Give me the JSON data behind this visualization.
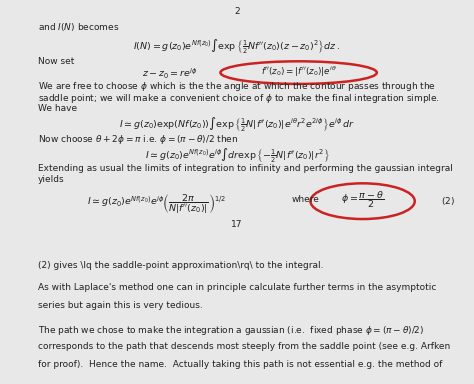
{
  "page_number_top": "2",
  "top_panel": {
    "background": "#f5f5f5",
    "text_color": "#222222",
    "line1": "and $I(N)$ becomes",
    "eq1": "$I(N) = g(z_0)e^{Nf(z_0)} \\int \\exp\\left\\{\\frac{1}{2}Nf''(z_0)(z-z_0)^2\\right\\} dz\\,.$",
    "line2": "Now set",
    "eq2": "$z - z_0 = re^{i\\phi}$",
    "circle1_label": "$f''(z_0) = |f''(z_0)|e^{i\\theta}$",
    "line3": "We are free to choose $\\phi$ which is the the angle at which the contour passes through the",
    "line4": "saddle point; we will make a convenient choice of $\\phi$ to make the final integration simple.",
    "line5": "We have",
    "eq3": "$I \\simeq g(z_0)\\exp(Nf(z_0)) \\int \\exp\\left\\{\\frac{1}{2}N|f''(z_0)|e^{i\\theta}r^2e^{2i\\phi}\\right\\} e^{i\\phi}\\, dr$",
    "line6": "Now choose $\\theta + 2\\phi = \\pi$ i.e. $\\phi = (\\pi-\\theta)/2$ then",
    "eq4": "$I \\simeq g(z_0)e^{Nf(z_0)} e^{i\\phi} \\int dr \\exp\\left\\{-\\frac{1}{2}N|f''(z_0)|r^2\\right\\}$",
    "line7": "Extending as usual the limits of integration to infinity and performing the gaussian integral",
    "line8": "yields",
    "eq5": "$I \\simeq g(z_0)e^{Nf(z_0)} e^{i\\phi} \\left(\\frac{2\\pi}{N|f''(z_0)|}\\right)^{1/2}$",
    "where_label": "where",
    "circle2_label": "$\\phi = \\dfrac{\\pi - \\theta}{2}$",
    "eq_number": "(2)",
    "page_number_bottom": "17"
  },
  "bottom_panel": {
    "background": "#ffffff",
    "text_color": "#222222",
    "line1": "(2) gives ‘the saddle-point approximation’ to the integral.",
    "line2": "As with Laplace’s method one can in principle calculate further terms in the asymptotic",
    "line3": "series but again this is very tedious.",
    "line4": "The path we chose to make the integration a gaussian (i.e.  fixed phase $\\phi = (\\pi - \\theta)/2$)",
    "line5": "corresponds to the path that descends most steeply from the saddle point (see e.g. Arfken",
    "line6": "for proof).  Hence the name.  Actually taking this path is not essential e.g. the method of"
  },
  "divider_color": "#cccccc",
  "circle_color": "#cc2222",
  "circle_linewidth": 1.8
}
